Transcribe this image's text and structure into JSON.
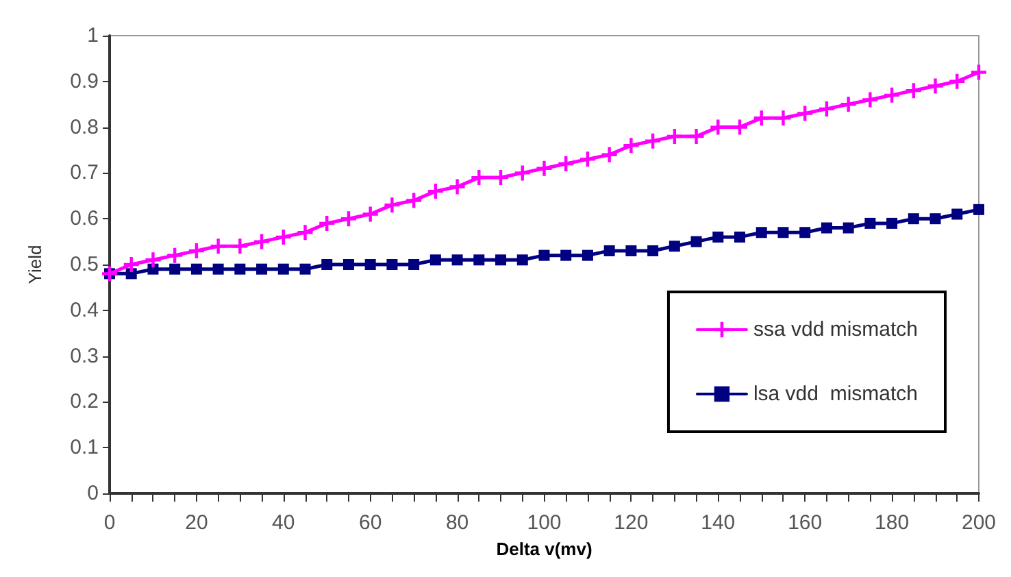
{
  "chart_data": {
    "type": "line",
    "xlabel": "Delta v(mv)",
    "ylabel": "Yield",
    "categories": [
      "0",
      null,
      null,
      null,
      "20",
      null,
      null,
      null,
      "40",
      null,
      null,
      null,
      "60",
      null,
      null,
      null,
      "80",
      null,
      null,
      null,
      "100",
      null,
      null,
      null,
      "120",
      null,
      null,
      null,
      "140",
      null,
      null,
      null,
      "160",
      null,
      null,
      null,
      "180",
      null,
      null,
      null,
      "200"
    ],
    "series": [
      {
        "name": "ssa vdd mismatch",
        "color": "#ff00ff",
        "marker": "cross",
        "values": [
          0.48,
          0.5,
          0.51,
          0.52,
          0.53,
          0.54,
          0.54,
          0.55,
          0.56,
          0.57,
          0.59,
          0.6,
          0.61,
          0.63,
          0.64,
          0.66,
          0.67,
          0.69,
          0.69,
          0.7,
          0.71,
          0.72,
          0.73,
          0.74,
          0.76,
          0.77,
          0.78,
          0.78,
          0.8,
          0.8,
          0.82,
          0.82,
          0.83,
          0.84,
          0.85,
          0.86,
          0.87,
          0.88,
          0.89,
          0.9,
          0.92
        ]
      },
      {
        "name": "lsa vdd  mismatch",
        "color": "#000080",
        "marker": "square",
        "values": [
          0.48,
          0.48,
          0.49,
          0.49,
          0.49,
          0.49,
          0.49,
          0.49,
          0.49,
          0.49,
          0.5,
          0.5,
          0.5,
          0.5,
          0.5,
          0.51,
          0.51,
          0.51,
          0.51,
          0.51,
          0.52,
          0.52,
          0.52,
          0.53,
          0.53,
          0.53,
          0.54,
          0.55,
          0.56,
          0.56,
          0.57,
          0.57,
          0.57,
          0.58,
          0.58,
          0.59,
          0.59,
          0.6,
          0.6,
          0.61,
          0.62
        ]
      }
    ],
    "ylim": [
      0,
      1
    ],
    "yticks": [
      0,
      0.1,
      0.2,
      0.3,
      0.4,
      0.5,
      0.6,
      0.7,
      0.8,
      0.9,
      1
    ],
    "grid": false,
    "legend": "right",
    "line_style": "solid"
  }
}
